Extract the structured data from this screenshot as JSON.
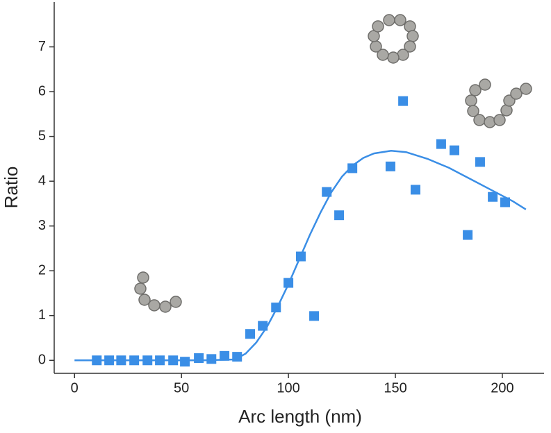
{
  "chart_data": {
    "type": "scatter",
    "xlabel": "Arc length (nm)",
    "ylabel": "Ratio",
    "xlim": [
      -9.5,
      219.5
    ],
    "ylim": [
      -0.29,
      8
    ],
    "xticks": [
      0,
      50,
      100,
      150,
      200
    ],
    "yticks": [
      0,
      1,
      2,
      3,
      4,
      5,
      6,
      7
    ],
    "grid": false,
    "series": [
      {
        "kind": "scatter",
        "color": "#3a8ee6",
        "x": [
          10.4,
          16.2,
          21.8,
          27.9,
          34.1,
          39.9,
          46.1,
          51.6,
          58.1,
          64.0,
          70.1,
          76.0,
          82.1,
          88.0,
          94.2,
          100.0,
          105.8,
          112.0,
          117.9,
          123.7,
          129.9,
          147.7,
          153.6,
          159.4,
          171.4,
          177.6,
          183.8,
          189.6,
          195.5,
          201.3
        ],
        "values": [
          0,
          0,
          0,
          0,
          0,
          0,
          0,
          -0.03,
          0.05,
          0.03,
          0.1,
          0.08,
          0.59,
          0.77,
          1.18,
          1.73,
          2.32,
          0.99,
          3.76,
          3.24,
          4.29,
          4.33,
          5.79,
          3.81,
          4.83,
          4.69,
          2.8,
          4.43,
          3.65,
          3.53
        ]
      },
      {
        "kind": "line",
        "color": "#3a8ee6",
        "x": [
          0,
          20,
          40,
          60,
          75,
          80,
          85,
          90,
          95,
          100,
          105,
          110,
          115,
          120,
          125,
          130,
          135,
          140,
          148,
          155,
          165,
          175,
          185,
          195,
          205,
          211
        ],
        "values": [
          0,
          0,
          0,
          0,
          0.02,
          0.15,
          0.4,
          0.75,
          1.2,
          1.7,
          2.25,
          2.8,
          3.3,
          3.75,
          4.1,
          4.35,
          4.52,
          4.62,
          4.68,
          4.65,
          4.5,
          4.3,
          4.05,
          3.8,
          3.55,
          3.37
        ]
      }
    ]
  }
}
